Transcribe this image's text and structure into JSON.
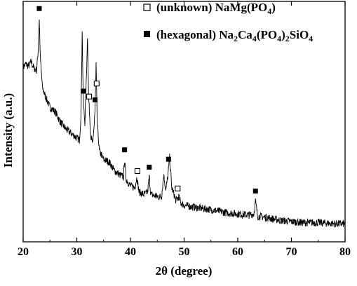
{
  "chart_data": {
    "type": "line",
    "title": "",
    "xlabel": "2θ (degree)",
    "ylabel": "Intensity (a.u.)",
    "xlim": [
      20,
      80
    ],
    "x_ticks": [
      20,
      30,
      40,
      50,
      60,
      70,
      80
    ],
    "y_ticks_shown": false,
    "grid": false,
    "legend_position": "top-right",
    "colors": {
      "line": "#000000",
      "marker": "#000000"
    },
    "series": [
      {
        "x": [
          20,
          20.5,
          21,
          21.5,
          22,
          22.5,
          22.8,
          23.0,
          23.2,
          23.6,
          24,
          25,
          26,
          27,
          28,
          29,
          30,
          30.5,
          30.8,
          31.0,
          31.2,
          31.5,
          31.8,
          32.0,
          32.2,
          32.6,
          33.0,
          33.4,
          33.6,
          33.8,
          34.2,
          35,
          36,
          37,
          38,
          38.7,
          38.9,
          39.2,
          40,
          40.8,
          41.2,
          41.6,
          42.5,
          43.2,
          43.5,
          43.8,
          45,
          45.8,
          46.2,
          46.6,
          47.0,
          47.3,
          47.7,
          48.5,
          49.0,
          49.4,
          50,
          52,
          55,
          58,
          60,
          62,
          63.0,
          63.3,
          63.7,
          65,
          68,
          70,
          72,
          75,
          78,
          80
        ],
        "y": [
          0.755,
          0.77,
          0.76,
          0.78,
          0.75,
          0.74,
          0.83,
          0.98,
          0.8,
          0.66,
          0.63,
          0.57,
          0.55,
          0.5,
          0.47,
          0.45,
          0.43,
          0.42,
          0.55,
          0.93,
          0.6,
          0.5,
          0.72,
          0.9,
          0.62,
          0.44,
          0.4,
          0.56,
          0.77,
          0.5,
          0.37,
          0.33,
          0.32,
          0.28,
          0.26,
          0.25,
          0.33,
          0.24,
          0.21,
          0.2,
          0.25,
          0.18,
          0.17,
          0.18,
          0.25,
          0.17,
          0.16,
          0.16,
          0.26,
          0.19,
          0.26,
          0.34,
          0.2,
          0.14,
          0.16,
          0.13,
          0.12,
          0.11,
          0.1,
          0.085,
          0.08,
          0.075,
          0.08,
          0.14,
          0.07,
          0.065,
          0.05,
          0.045,
          0.04,
          0.04,
          0.035,
          0.035
        ]
      }
    ],
    "markers": {
      "unknown": [
        32.3,
        33.7,
        41.3,
        48.8
      ],
      "hexagonal": [
        23.0,
        31.2,
        33.4,
        38.9,
        43.5,
        47.1,
        63.3
      ]
    },
    "legend": [
      {
        "symbol": "open-square",
        "label": "(unknown) NaMg(PO",
        "sub": "4",
        "tail": ")"
      },
      {
        "symbol": "filled-square",
        "label": "(hexagonal) Na",
        "parts": [
          "2",
          "Ca",
          "4",
          "(PO",
          "4",
          ")",
          "2",
          "SiO",
          "4"
        ]
      }
    ]
  }
}
